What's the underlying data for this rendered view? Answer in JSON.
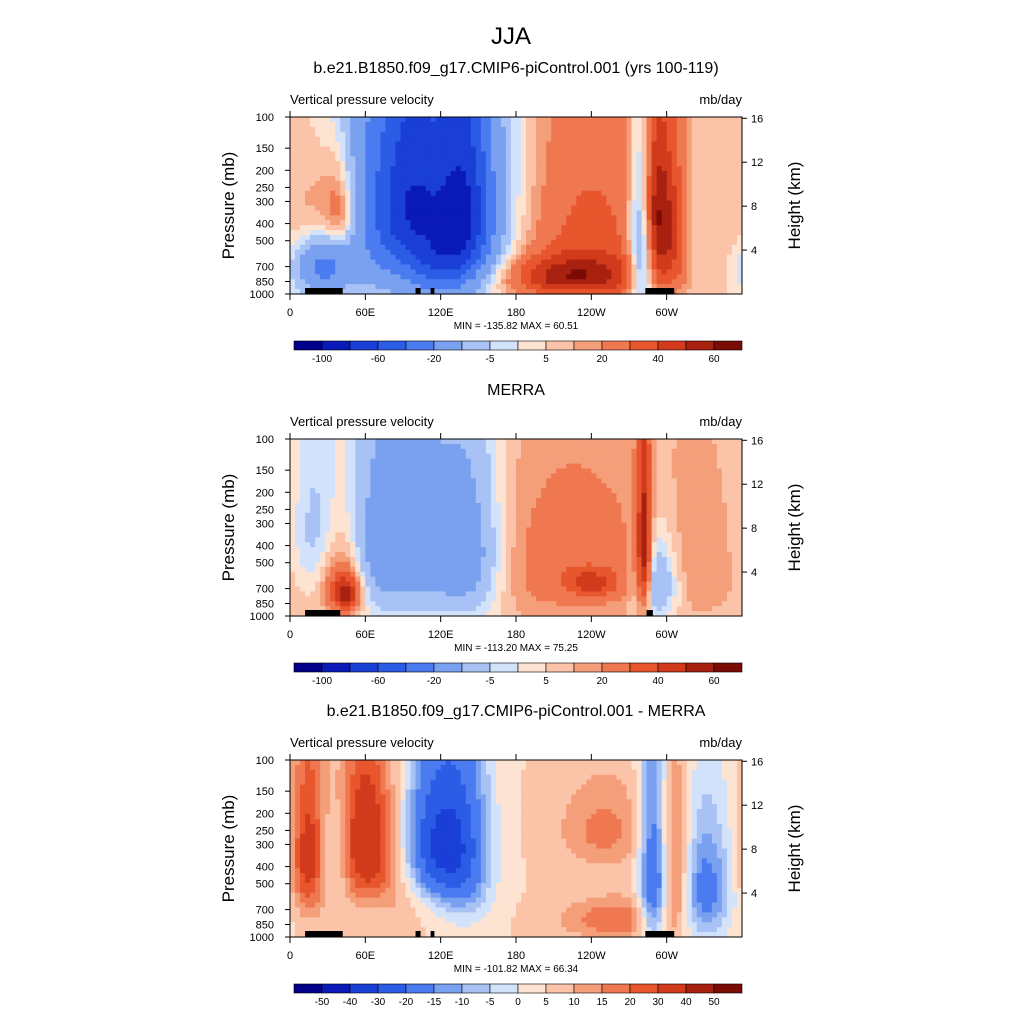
{
  "figure": {
    "title": "JJA"
  },
  "chart_data": [
    {
      "type": "heatmap",
      "title": "b.e21.B1850.f09_g17.CMIP6-piControl.001 (yrs 100-119)",
      "subtitle_left": "Vertical pressure velocity",
      "subtitle_right": "mb/day",
      "ylabel": "Pressure (mb)",
      "ylabel_right": "Height (km)",
      "xticks": [
        "0",
        "60E",
        "120E",
        "180",
        "120W",
        "60W"
      ],
      "yticks": [
        "100",
        "150",
        "200",
        "250",
        "300",
        "400",
        "500",
        "700",
        "850",
        "1000"
      ],
      "yticks_right": [
        "16",
        "12",
        "8",
        "4"
      ],
      "stats": "MIN = -135.82  MAX =  60.51",
      "colorbar_labels": [
        "-100",
        "-60",
        "-20",
        "-5",
        "5",
        "20",
        "40",
        "60"
      ],
      "xlim": [
        0,
        360
      ],
      "ylim": [
        1000,
        100
      ],
      "features": [
        {
          "lon": 20,
          "p": 350,
          "w": 14,
          "h": 200,
          "v": 15
        },
        {
          "lon": 40,
          "p": 350,
          "w": 10,
          "h": 150,
          "v": 30
        },
        {
          "lon": 25,
          "p": 700,
          "w": 15,
          "h": 180,
          "v": -40
        },
        {
          "lon": 110,
          "p": 350,
          "w": 50,
          "h": 450,
          "v": -60
        },
        {
          "lon": 95,
          "p": 300,
          "w": 20,
          "h": 250,
          "v": -45
        },
        {
          "lon": 140,
          "p": 350,
          "w": 15,
          "h": 300,
          "v": -60
        },
        {
          "lon": 120,
          "p": 700,
          "w": 15,
          "h": 200,
          "v": -30
        },
        {
          "lon": 225,
          "p": 450,
          "w": 55,
          "h": 450,
          "v": 25
        },
        {
          "lon": 225,
          "p": 800,
          "w": 40,
          "h": 150,
          "v": 35
        },
        {
          "lon": 280,
          "p": 550,
          "w": 7,
          "h": 400,
          "v": -45
        },
        {
          "lon": 290,
          "p": 350,
          "w": 8,
          "h": 250,
          "v": 35
        },
        {
          "lon": 305,
          "p": 450,
          "w": 10,
          "h": 300,
          "v": 25
        },
        {
          "lon": 320,
          "p": 450,
          "w": 10,
          "h": 300,
          "v": -10
        },
        {
          "lon": 345,
          "p": 400,
          "w": 30,
          "h": 250,
          "v": 4
        }
      ],
      "terrain_lon": [
        [
          12,
          42
        ],
        [
          100,
          104
        ],
        [
          112,
          115
        ],
        [
          283,
          306
        ]
      ]
    },
    {
      "type": "heatmap",
      "title": "MERRA",
      "subtitle_left": "Vertical pressure velocity",
      "subtitle_right": "mb/day",
      "ylabel": "Pressure (mb)",
      "ylabel_right": "Height (km)",
      "xticks": [
        "0",
        "60E",
        "120E",
        "180",
        "120W",
        "60W"
      ],
      "yticks": [
        "100",
        "150",
        "200",
        "250",
        "300",
        "400",
        "500",
        "700",
        "850",
        "1000"
      ],
      "yticks_right": [
        "16",
        "12",
        "8",
        "4"
      ],
      "stats": "MIN = -113.20  MAX =  75.25",
      "colorbar_labels": [
        "-100",
        "-60",
        "-20",
        "-5",
        "5",
        "20",
        "40",
        "60"
      ],
      "xlim": [
        0,
        360
      ],
      "ylim": [
        1000,
        100
      ],
      "features": [
        {
          "lon": 20,
          "p": 350,
          "w": 14,
          "h": 250,
          "v": -15
        },
        {
          "lon": 40,
          "p": 600,
          "w": 12,
          "h": 250,
          "v": 20
        },
        {
          "lon": 45,
          "p": 750,
          "w": 8,
          "h": 120,
          "v": 40
        },
        {
          "lon": 75,
          "p": 400,
          "w": 20,
          "h": 350,
          "v": -30
        },
        {
          "lon": 105,
          "p": 400,
          "w": 15,
          "h": 300,
          "v": -20
        },
        {
          "lon": 140,
          "p": 450,
          "w": 20,
          "h": 350,
          "v": -35
        },
        {
          "lon": 225,
          "p": 500,
          "w": 60,
          "h": 400,
          "v": 15
        },
        {
          "lon": 240,
          "p": 650,
          "w": 15,
          "h": 80,
          "v": 25
        },
        {
          "lon": 282,
          "p": 450,
          "w": 4,
          "h": 300,
          "v": 50
        },
        {
          "lon": 292,
          "p": 650,
          "w": 12,
          "h": 250,
          "v": -30
        },
        {
          "lon": 330,
          "p": 500,
          "w": 30,
          "h": 400,
          "v": 6
        }
      ],
      "terrain_lon": [
        [
          12,
          40
        ],
        [
          284,
          289
        ]
      ]
    },
    {
      "type": "heatmap",
      "title": "b.e21.B1850.f09_g17.CMIP6-piControl.001 - MERRA",
      "subtitle_left": "Vertical pressure velocity",
      "subtitle_right": "mb/day",
      "ylabel": "Pressure (mb)",
      "ylabel_right": "Height (km)",
      "xticks": [
        "0",
        "60E",
        "120E",
        "180",
        "120W",
        "60W"
      ],
      "yticks": [
        "100",
        "150",
        "200",
        "250",
        "300",
        "400",
        "500",
        "700",
        "850",
        "1000"
      ],
      "yticks_right": [
        "16",
        "12",
        "8",
        "4"
      ],
      "stats": "MIN = -101.82  MAX =  66.34",
      "colorbar_labels": [
        "-50",
        "-40",
        "-30",
        "-20",
        "-15",
        "-10",
        "-5",
        "0",
        "5",
        "10",
        "15",
        "20",
        "30",
        "40",
        "50"
      ],
      "xlim": [
        0,
        360
      ],
      "ylim": [
        1000,
        100
      ],
      "features": [
        {
          "lon": 15,
          "p": 350,
          "w": 10,
          "h": 250,
          "v": 25
        },
        {
          "lon": 35,
          "p": 350,
          "w": 10,
          "h": 150,
          "v": -10
        },
        {
          "lon": 60,
          "p": 300,
          "w": 15,
          "h": 200,
          "v": 30
        },
        {
          "lon": 90,
          "p": 400,
          "w": 15,
          "h": 250,
          "v": 10
        },
        {
          "lon": 115,
          "p": 300,
          "w": 20,
          "h": 200,
          "v": -40
        },
        {
          "lon": 140,
          "p": 350,
          "w": 15,
          "h": 300,
          "v": -20
        },
        {
          "lon": 250,
          "p": 250,
          "w": 25,
          "h": 100,
          "v": 12
        },
        {
          "lon": 260,
          "p": 800,
          "w": 30,
          "h": 150,
          "v": 15
        },
        {
          "lon": 290,
          "p": 500,
          "w": 8,
          "h": 400,
          "v": -35
        },
        {
          "lon": 305,
          "p": 450,
          "w": 10,
          "h": 300,
          "v": 20
        },
        {
          "lon": 330,
          "p": 550,
          "w": 15,
          "h": 300,
          "v": -25
        }
      ],
      "terrain_lon": [
        [
          12,
          42
        ],
        [
          100,
          104
        ],
        [
          112,
          115
        ],
        [
          283,
          306
        ]
      ]
    }
  ],
  "colors": {
    "scale": [
      "#00008b",
      "#0a1ab8",
      "#1a3fd6",
      "#2b5ce6",
      "#4a7bf0",
      "#7aa0f0",
      "#a8c2f5",
      "#d2e2fb",
      "#fde3d2",
      "#fbc4a8",
      "#f59e7a",
      "#f07850",
      "#e8562e",
      "#d23a1c",
      "#a8200f",
      "#7a0b05"
    ],
    "terrain": "#000000"
  }
}
